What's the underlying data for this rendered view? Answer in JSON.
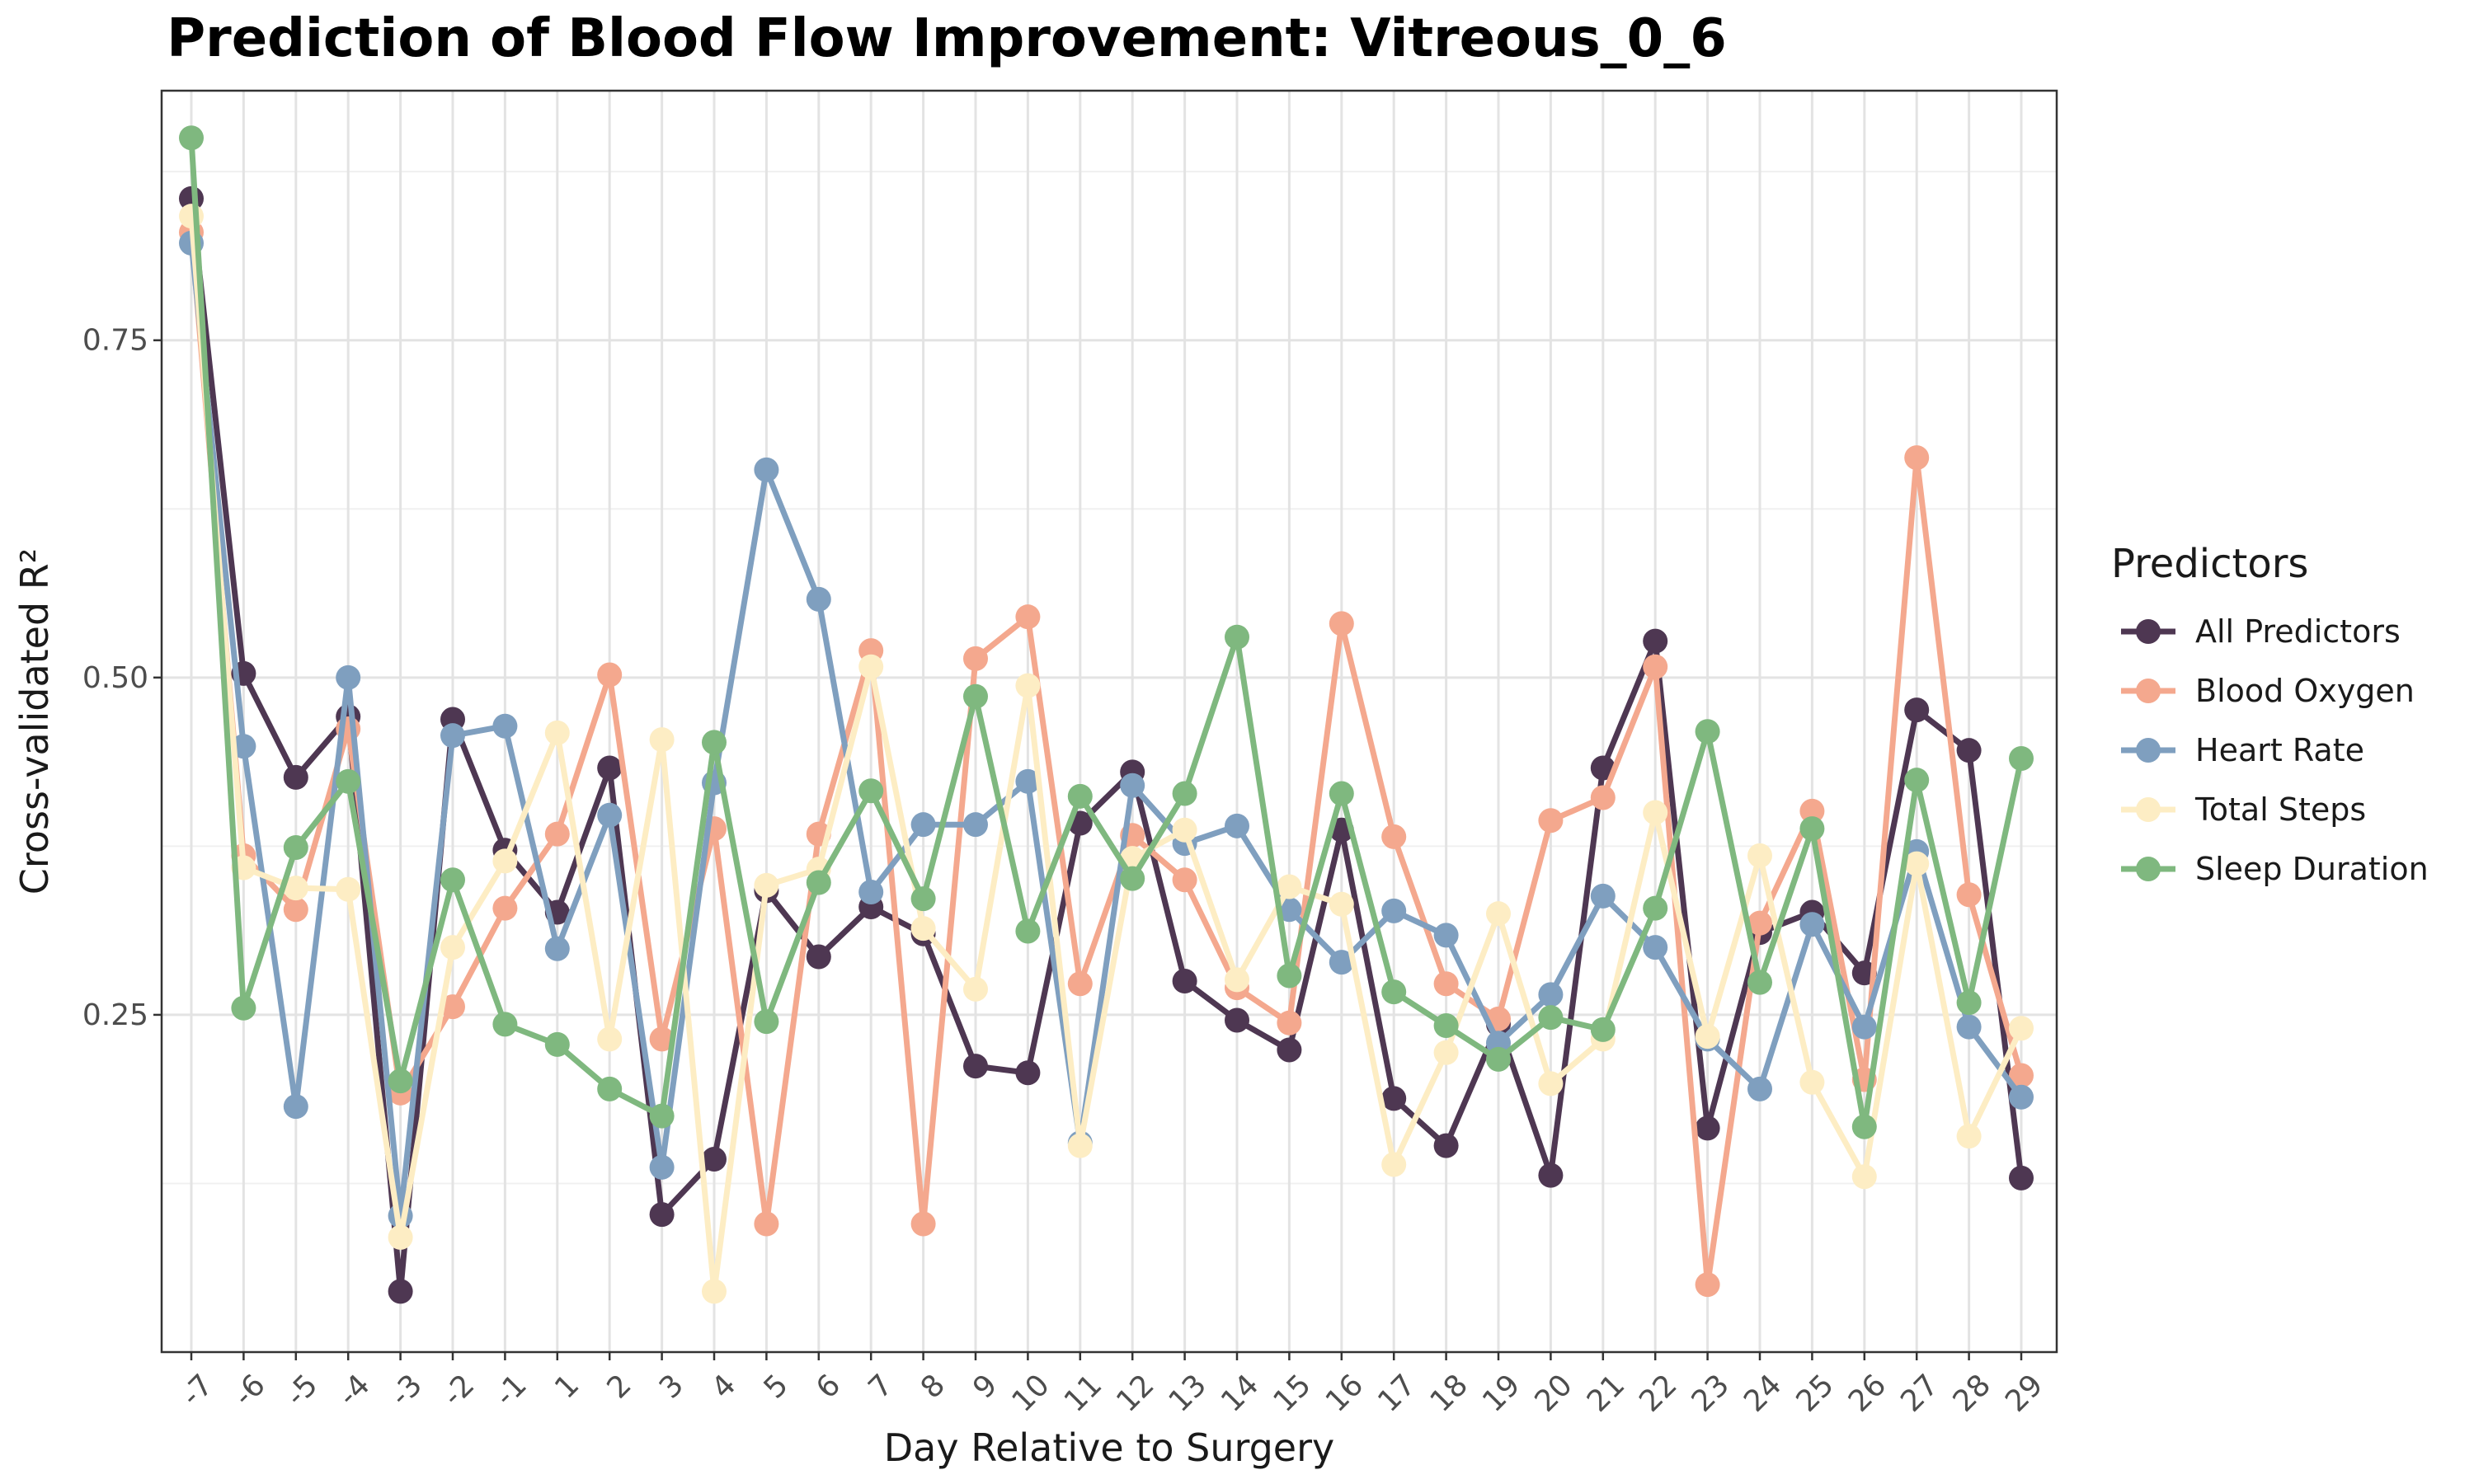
{
  "chart_data": {
    "type": "line",
    "title": "Prediction of Blood Flow Improvement: Vitreous_0_6",
    "xlabel": "Day Relative to Surgery",
    "ylabel": "Cross-validated R²",
    "x": [
      "-7",
      "-6",
      "-5",
      "-4",
      "-3",
      "-2",
      "-1",
      "1",
      "2",
      "3",
      "4",
      "5",
      "6",
      "7",
      "8",
      "9",
      "10",
      "11",
      "12",
      "13",
      "14",
      "15",
      "16",
      "17",
      "18",
      "19",
      "20",
      "21",
      "22",
      "23",
      "24",
      "25",
      "26",
      "27",
      "28",
      "29"
    ],
    "yticks": [
      0.25,
      0.5,
      0.75
    ],
    "ytick_labels": [
      "0.25",
      "0.50",
      "0.75"
    ],
    "ylim": [
      0.0,
      0.935
    ],
    "grid": true,
    "legend": {
      "title": "Predictors",
      "position": "right"
    },
    "series": [
      {
        "name": "All Predictors",
        "color": "#4e3752",
        "values": [
          0.855,
          0.503,
          0.426,
          0.471,
          0.045,
          0.469,
          0.372,
          0.326,
          0.433,
          0.102,
          0.143,
          0.342,
          0.293,
          0.33,
          0.31,
          0.212,
          0.207,
          0.392,
          0.43,
          0.275,
          0.246,
          0.224,
          0.387,
          0.188,
          0.153,
          0.243,
          0.131,
          0.433,
          0.527,
          0.166,
          0.311,
          0.326,
          0.281,
          0.476,
          0.446,
          0.129
        ]
      },
      {
        "name": "Blood Oxygen",
        "color": "#f4a88e",
        "values": [
          0.83,
          0.368,
          0.328,
          0.462,
          0.192,
          0.256,
          0.329,
          0.384,
          0.502,
          0.232,
          0.388,
          0.095,
          0.384,
          0.52,
          0.095,
          0.514,
          0.545,
          0.273,
          0.383,
          0.35,
          0.27,
          0.244,
          0.54,
          0.382,
          0.273,
          0.247,
          0.394,
          0.411,
          0.508,
          0.05,
          0.318,
          0.401,
          0.202,
          0.663,
          0.339,
          0.205
        ]
      },
      {
        "name": "Heart Rate",
        "color": "#7f9fbf",
        "values": [
          0.822,
          0.449,
          0.182,
          0.5,
          0.101,
          0.457,
          0.464,
          0.299,
          0.398,
          0.137,
          0.422,
          0.654,
          0.558,
          0.341,
          0.391,
          0.391,
          0.423,
          0.155,
          0.42,
          0.377,
          0.39,
          0.328,
          0.289,
          0.327,
          0.309,
          0.229,
          0.265,
          0.338,
          0.3,
          0.232,
          0.195,
          0.317,
          0.241,
          0.371,
          0.241,
          0.189
        ]
      },
      {
        "name": "Total Steps",
        "color": "#fdedc4",
        "values": [
          0.842,
          0.359,
          0.344,
          0.343,
          0.085,
          0.3,
          0.364,
          0.459,
          0.232,
          0.454,
          0.045,
          0.346,
          0.358,
          0.508,
          0.314,
          0.269,
          0.494,
          0.153,
          0.366,
          0.387,
          0.276,
          0.345,
          0.332,
          0.139,
          0.222,
          0.325,
          0.199,
          0.232,
          0.4,
          0.234,
          0.368,
          0.2,
          0.13,
          0.362,
          0.16,
          0.24
        ]
      },
      {
        "name": "Sleep Duration",
        "color": "#7fb87f",
        "values": [
          0.9,
          0.255,
          0.374,
          0.423,
          0.201,
          0.35,
          0.243,
          0.228,
          0.195,
          0.175,
          0.452,
          0.245,
          0.348,
          0.416,
          0.336,
          0.486,
          0.312,
          0.412,
          0.351,
          0.414,
          0.53,
          0.279,
          0.414,
          0.267,
          0.242,
          0.217,
          0.248,
          0.239,
          0.329,
          0.46,
          0.274,
          0.388,
          0.167,
          0.424,
          0.259,
          0.44
        ]
      }
    ]
  }
}
